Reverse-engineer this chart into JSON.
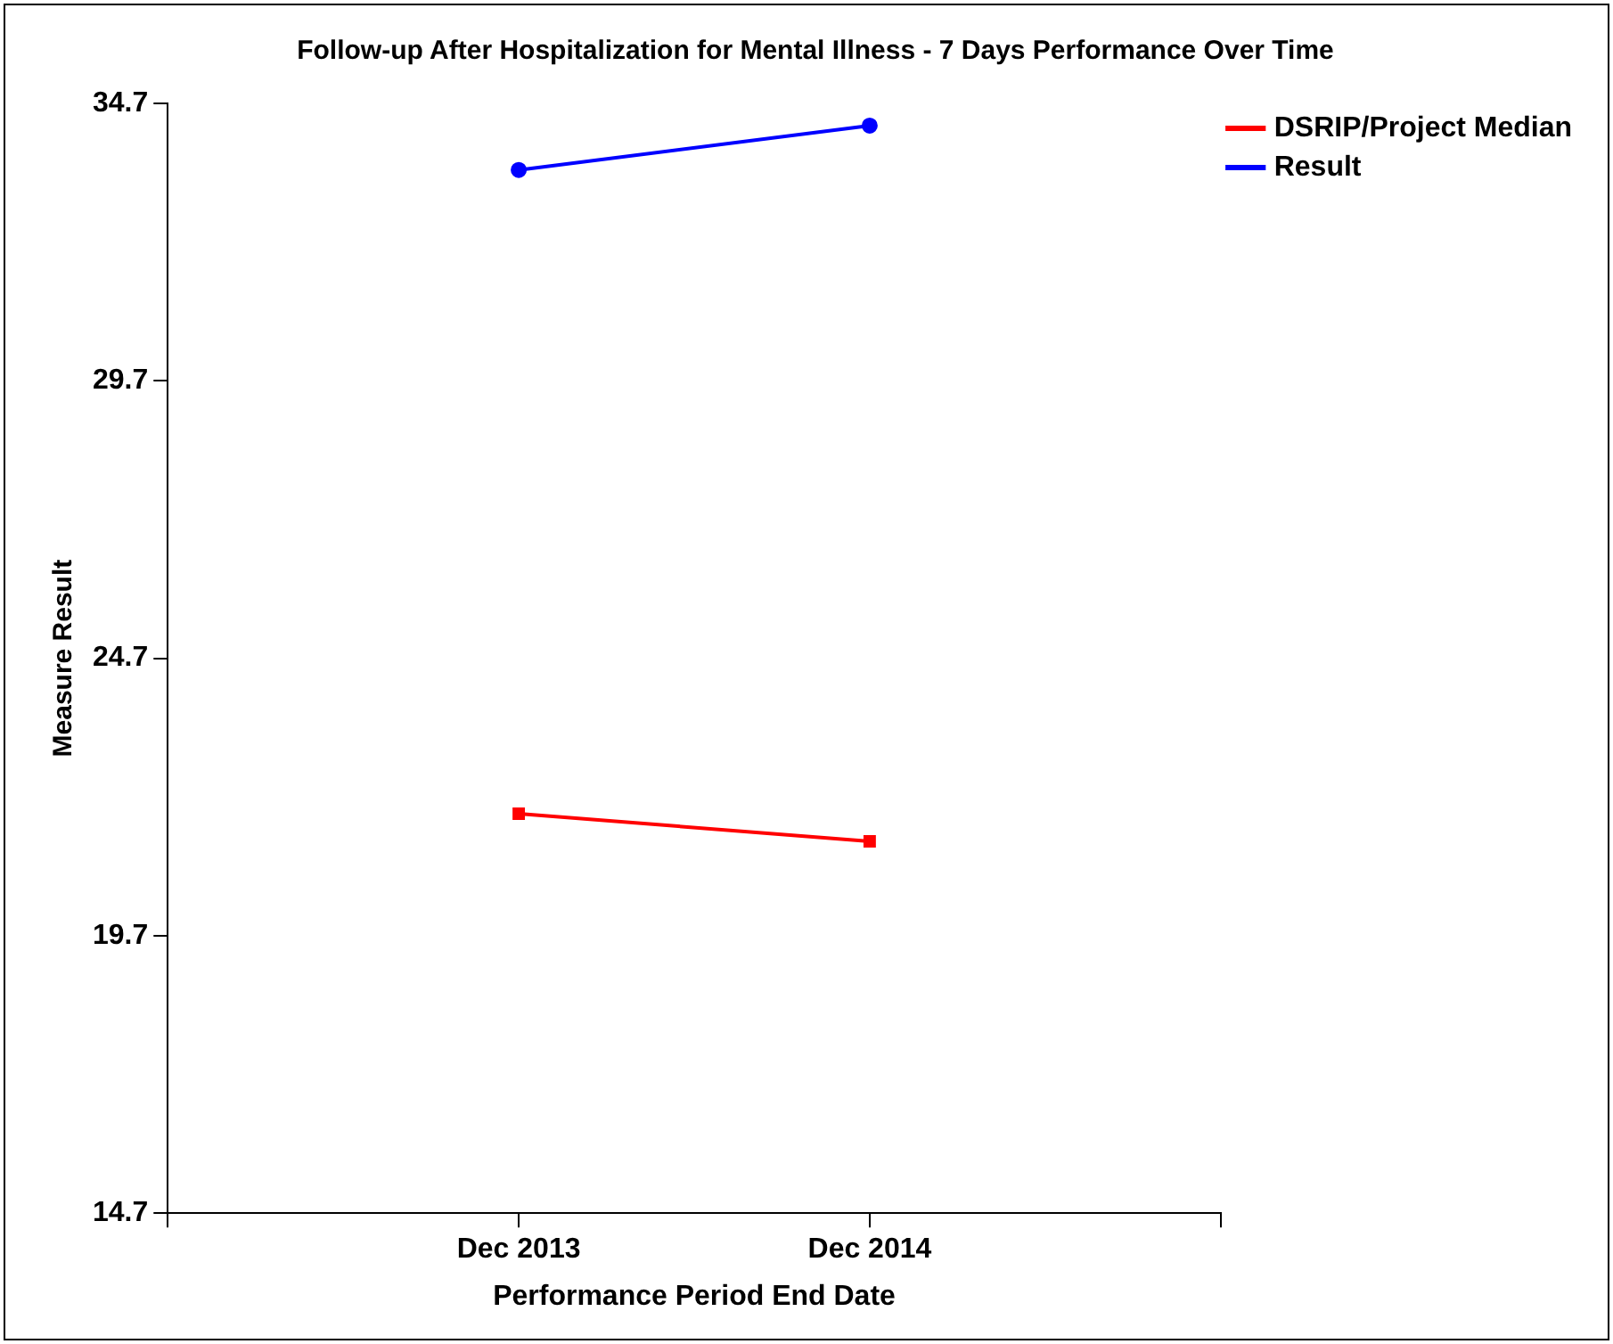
{
  "chart_data": {
    "type": "line",
    "title": "Follow-up After Hospitalization for Mental Illness - 7 Days Performance Over Time",
    "xlabel": "Performance Period End Date",
    "ylabel": "Measure Result",
    "categories": [
      null,
      "Dec 2013",
      "Dec 2014",
      null
    ],
    "series": [
      {
        "name": "DSRIP/Project Median",
        "color": "#ff0000",
        "marker": "square",
        "values": [
          null,
          21.9,
          21.4,
          null
        ]
      },
      {
        "name": "Result",
        "color": "#0000ff",
        "marker": "circle",
        "values": [
          null,
          33.5,
          34.3,
          null
        ]
      }
    ],
    "ylim": [
      14.7,
      34.7
    ],
    "yticks": [
      14.7,
      19.7,
      24.7,
      29.7,
      34.7
    ],
    "grid": false,
    "legend": "top right",
    "line_style": "solid"
  }
}
